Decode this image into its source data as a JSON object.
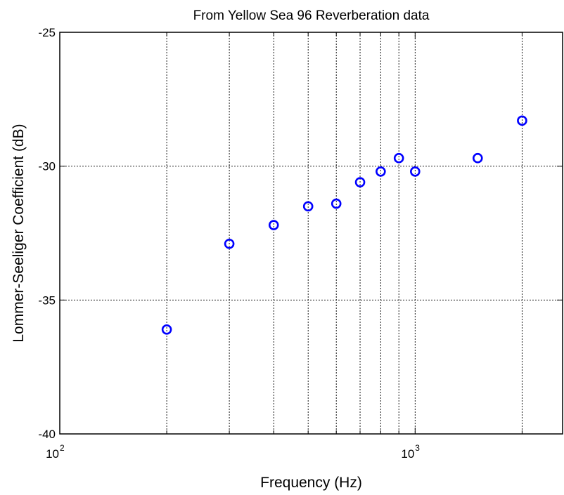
{
  "chart_data": {
    "type": "scatter",
    "title": "From Yellow Sea 96 Reverberation data",
    "xlabel": "Frequency (Hz)",
    "ylabel": "Lommer-Seeliger Coefficient (dB)",
    "xscale": "log",
    "xlim": [
      100,
      2600
    ],
    "ylim": [
      -40,
      -25
    ],
    "x_ticks": [
      {
        "value": 100,
        "label_base": "10",
        "label_exp": "2"
      },
      {
        "value": 1000,
        "label_base": "10",
        "label_exp": "3"
      }
    ],
    "y_ticks": [
      {
        "value": -25,
        "label": "-25"
      },
      {
        "value": -30,
        "label": "-30"
      },
      {
        "value": -35,
        "label": "-35"
      },
      {
        "value": -40,
        "label": "-40"
      }
    ],
    "grid": true,
    "marker": "circle",
    "marker_color": "#0000ff",
    "series": [
      {
        "x": [
          200,
          300,
          400,
          500,
          600,
          700,
          800,
          900,
          1000,
          1500,
          2000
        ],
        "y": [
          -36.1,
          -32.9,
          -32.2,
          -31.5,
          -31.4,
          -30.6,
          -30.2,
          -29.7,
          -30.2,
          -29.7,
          -28.3
        ]
      }
    ]
  }
}
